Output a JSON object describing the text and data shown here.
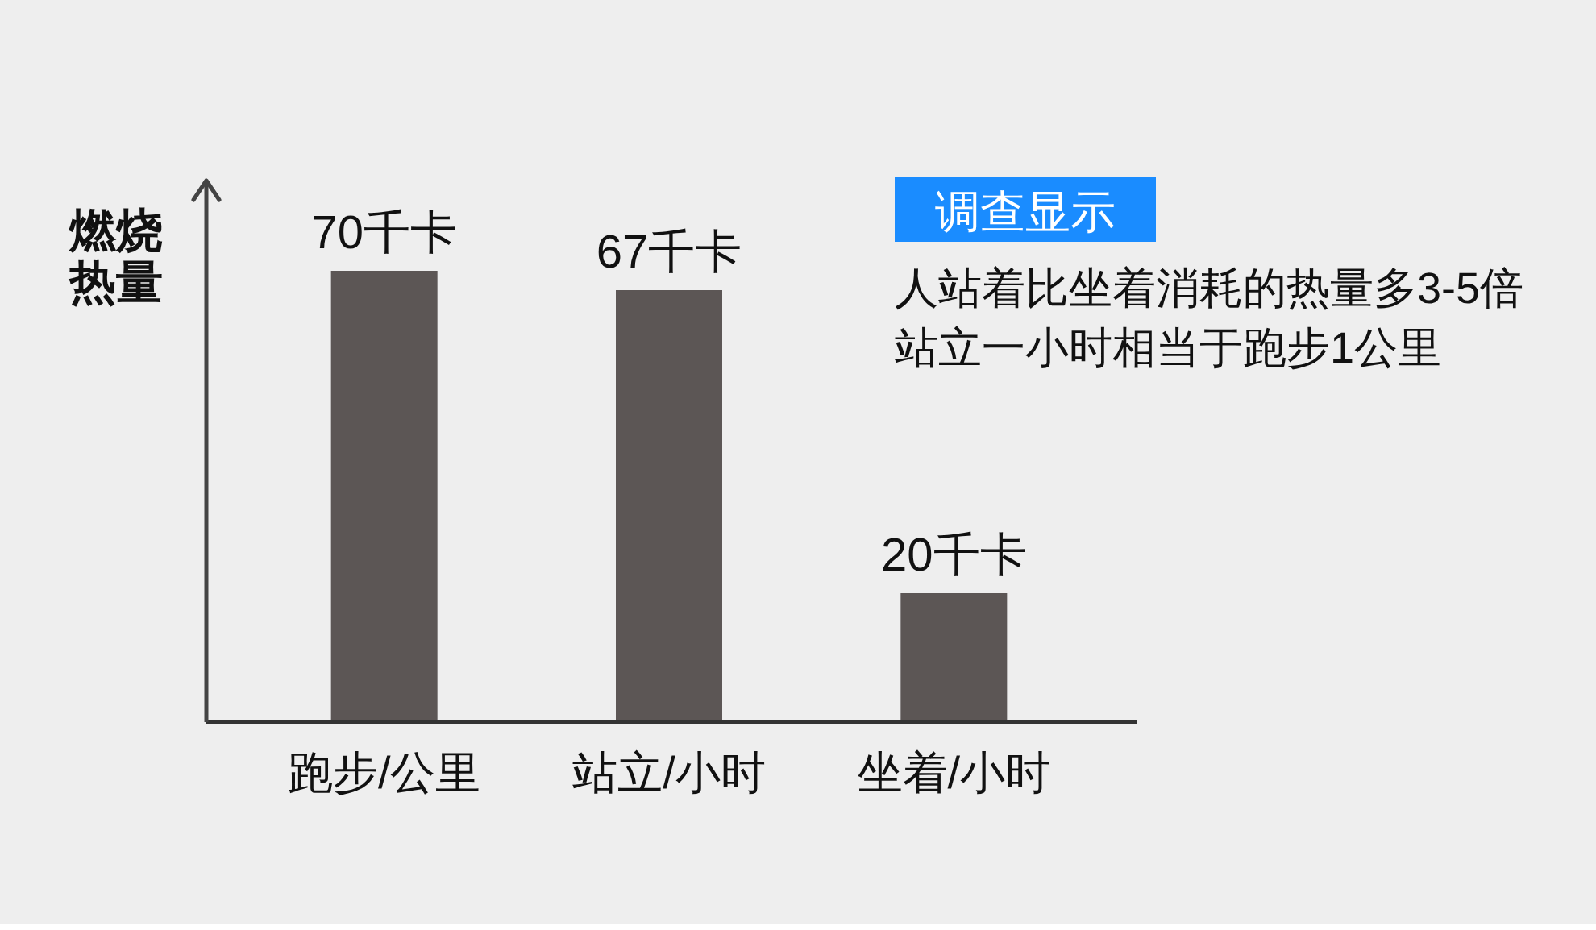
{
  "chart_data": {
    "type": "bar",
    "ylabel": "燃烧热量",
    "categories": [
      "跑步/公里",
      "站立/小时",
      "坐着/小时"
    ],
    "values": [
      70,
      67,
      20
    ],
    "value_labels": [
      "70千卡",
      "67千卡",
      "20千卡"
    ],
    "color": "#5c5655",
    "annotations": [
      "调查显示",
      "人站着比坐着消耗的热量多3-5倍",
      "站立一小时相当于跑步1公里"
    ]
  }
}
